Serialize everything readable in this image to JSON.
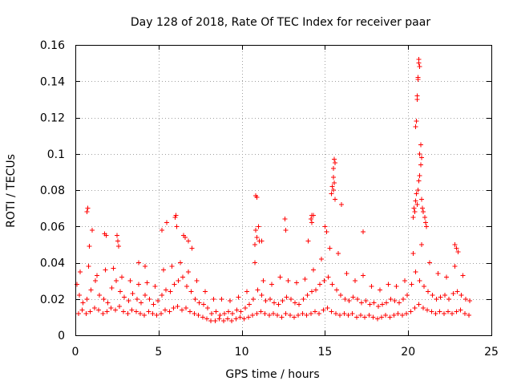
{
  "chart_data": {
    "type": "scatter",
    "title": "Day 128 of 2018, Rate Of TEC Index for receiver paar",
    "xlabel": "GPS time / hours",
    "ylabel": "ROTI / TECUs",
    "xlim": [
      0,
      25
    ],
    "ylim": [
      0,
      0.16
    ],
    "x_ticks": [
      0,
      5,
      10,
      15,
      20,
      25
    ],
    "y_ticks": [
      0,
      0.02,
      0.04,
      0.06,
      0.08,
      0.1,
      0.12,
      0.14,
      0.16
    ],
    "x_tick_labels": [
      "0",
      "5",
      "10",
      "15",
      "20",
      "25"
    ],
    "y_tick_labels": [
      "0",
      "0.02",
      "0.04",
      "0.06",
      "0.08",
      "0.1",
      "0.12",
      "0.14",
      "0.16"
    ],
    "grid": true,
    "marker": "plus",
    "series_color": "#ff0000",
    "series": [
      {
        "name": "ROTI",
        "x": [
          0.1,
          0.25,
          0.45,
          0.7,
          0.95,
          1.2,
          1.45,
          1.7,
          1.95,
          2.2,
          2.45,
          2.7,
          2.95,
          3.2,
          3.45,
          3.7,
          3.95,
          4.2,
          4.45,
          4.7,
          4.95,
          5.2,
          5.45,
          5.7,
          5.95,
          6.2,
          6.45,
          6.7,
          6.95,
          7.2,
          7.45,
          7.7,
          7.95,
          8.2,
          8.45,
          8.7,
          8.95,
          9.2,
          9.45,
          9.7,
          9.95,
          10.2,
          10.45,
          10.7,
          10.95,
          11.2,
          11.45,
          11.7,
          11.95,
          12.2,
          12.45,
          12.7,
          12.95,
          13.2,
          13.45,
          13.7,
          13.95,
          14.2,
          14.45,
          14.7,
          14.95,
          15.2,
          15.45,
          15.7,
          15.95,
          16.2,
          16.45,
          16.7,
          16.95,
          17.2,
          17.45,
          17.7,
          17.95,
          18.2,
          18.45,
          18.7,
          18.95,
          19.2,
          19.45,
          19.7,
          19.95,
          20.2,
          20.45,
          20.7,
          20.95,
          21.2,
          21.45,
          21.7,
          21.95,
          22.2,
          22.45,
          22.7,
          22.95,
          23.2,
          23.45,
          23.7,
          0.2,
          0.4,
          0.65,
          0.9,
          1.15,
          1.4,
          1.65,
          1.9,
          2.15,
          2.4,
          2.65,
          2.9,
          3.15,
          3.4,
          3.65,
          3.9,
          4.15,
          4.4,
          4.65,
          4.9,
          5.15,
          5.4,
          5.65,
          5.9,
          6.15,
          6.4,
          6.65,
          6.9,
          7.15,
          7.4,
          7.65,
          7.9,
          8.15,
          8.4,
          8.65,
          8.9,
          9.15,
          9.4,
          9.65,
          9.9,
          10.15,
          10.4,
          10.65,
          10.9,
          11.15,
          11.4,
          11.65,
          11.9,
          12.15,
          12.4,
          12.65,
          12.9,
          13.15,
          13.4,
          13.65,
          13.9,
          14.15,
          14.4,
          14.65,
          14.9,
          15.15,
          15.4,
          15.65,
          15.9,
          16.15,
          16.4,
          16.65,
          16.9,
          17.15,
          17.4,
          17.65,
          17.9,
          18.15,
          18.4,
          18.65,
          18.9,
          19.15,
          19.4,
          19.65,
          19.9,
          20.15,
          20.4,
          20.65,
          20.9,
          21.15,
          21.4,
          21.65,
          21.9,
          22.15,
          22.4,
          22.65,
          22.9,
          23.15,
          23.4,
          23.65,
          0.3,
          0.8,
          1.3,
          1.8,
          2.3,
          2.8,
          3.3,
          3.8,
          4.3,
          4.8,
          5.3,
          5.8,
          6.3,
          6.8,
          7.3,
          7.8,
          8.3,
          8.8,
          9.3,
          9.8,
          10.3,
          10.8,
          11.3,
          11.8,
          12.3,
          12.8,
          13.3,
          13.8,
          14.3,
          14.8,
          15.3,
          15.8,
          16.3,
          16.8,
          17.3,
          17.8,
          18.3,
          18.8,
          19.3,
          19.8,
          20.3,
          20.8,
          21.3,
          21.8,
          22.3,
          22.8,
          23.3,
          0.7,
          0.75,
          0.85,
          1.0,
          1.75,
          1.85,
          2.5,
          2.55,
          2.6,
          3.8,
          4.2,
          5.2,
          5.5,
          6.0,
          6.05,
          6.1,
          6.5,
          6.6,
          6.8,
          7.0,
          10.8,
          10.85,
          10.9,
          11.0,
          11.05,
          11.2,
          12.6,
          12.65,
          14.0,
          14.2,
          14.3,
          15.0,
          15.1,
          15.4,
          15.45,
          15.5,
          15.55,
          15.6,
          16.0,
          17.3,
          20.3,
          20.35,
          20.4,
          20.45,
          20.5,
          20.55,
          20.6,
          20.65,
          20.7,
          20.75,
          20.8,
          20.85,
          20.9,
          21.0,
          21.05,
          21.1,
          22.8,
          22.9,
          23.0,
          20.45,
          20.5,
          20.55,
          20.6,
          20.65,
          20.7,
          20.75,
          20.8,
          20.55,
          20.6,
          20.65,
          20.7,
          15.5,
          15.55,
          15.6,
          15.5,
          10.85,
          10.9,
          14.15,
          14.2
        ],
        "y": [
          0.028,
          0.022,
          0.018,
          0.02,
          0.025,
          0.03,
          0.022,
          0.02,
          0.018,
          0.026,
          0.03,
          0.024,
          0.021,
          0.019,
          0.023,
          0.02,
          0.018,
          0.022,
          0.02,
          0.017,
          0.019,
          0.022,
          0.025,
          0.024,
          0.028,
          0.03,
          0.032,
          0.027,
          0.024,
          0.02,
          0.018,
          0.017,
          0.015,
          0.012,
          0.013,
          0.011,
          0.012,
          0.013,
          0.012,
          0.014,
          0.013,
          0.015,
          0.017,
          0.02,
          0.025,
          0.022,
          0.019,
          0.02,
          0.018,
          0.017,
          0.019,
          0.021,
          0.02,
          0.018,
          0.017,
          0.02,
          0.022,
          0.024,
          0.025,
          0.028,
          0.03,
          0.032,
          0.028,
          0.025,
          0.022,
          0.02,
          0.019,
          0.021,
          0.02,
          0.018,
          0.019,
          0.017,
          0.018,
          0.016,
          0.017,
          0.018,
          0.02,
          0.019,
          0.018,
          0.02,
          0.022,
          0.028,
          0.035,
          0.03,
          0.027,
          0.024,
          0.022,
          0.02,
          0.021,
          0.022,
          0.02,
          0.023,
          0.024,
          0.022,
          0.02,
          0.019,
          0.012,
          0.014,
          0.012,
          0.013,
          0.015,
          0.014,
          0.012,
          0.013,
          0.015,
          0.014,
          0.016,
          0.013,
          0.012,
          0.014,
          0.013,
          0.012,
          0.011,
          0.013,
          0.012,
          0.011,
          0.012,
          0.014,
          0.013,
          0.015,
          0.016,
          0.014,
          0.015,
          0.013,
          0.012,
          0.011,
          0.01,
          0.009,
          0.008,
          0.008,
          0.009,
          0.008,
          0.009,
          0.008,
          0.009,
          0.01,
          0.009,
          0.01,
          0.011,
          0.012,
          0.013,
          0.012,
          0.011,
          0.012,
          0.011,
          0.01,
          0.012,
          0.011,
          0.01,
          0.011,
          0.012,
          0.011,
          0.012,
          0.013,
          0.012,
          0.014,
          0.015,
          0.013,
          0.012,
          0.011,
          0.012,
          0.011,
          0.012,
          0.01,
          0.011,
          0.01,
          0.011,
          0.01,
          0.009,
          0.01,
          0.011,
          0.01,
          0.011,
          0.012,
          0.011,
          0.012,
          0.013,
          0.015,
          0.017,
          0.015,
          0.014,
          0.013,
          0.012,
          0.013,
          0.012,
          0.013,
          0.012,
          0.013,
          0.014,
          0.012,
          0.011,
          0.035,
          0.038,
          0.033,
          0.036,
          0.037,
          0.032,
          0.03,
          0.028,
          0.029,
          0.027,
          0.036,
          0.038,
          0.04,
          0.035,
          0.03,
          0.024,
          0.02,
          0.02,
          0.019,
          0.021,
          0.024,
          0.04,
          0.03,
          0.028,
          0.032,
          0.03,
          0.029,
          0.031,
          0.036,
          0.042,
          0.048,
          0.045,
          0.034,
          0.03,
          0.033,
          0.027,
          0.025,
          0.028,
          0.027,
          0.03,
          0.045,
          0.05,
          0.04,
          0.034,
          0.032,
          0.038,
          0.033,
          0.068,
          0.07,
          0.049,
          0.058,
          0.056,
          0.055,
          0.055,
          0.052,
          0.049,
          0.04,
          0.038,
          0.058,
          0.062,
          0.065,
          0.066,
          0.06,
          0.055,
          0.054,
          0.052,
          0.048,
          0.05,
          0.058,
          0.054,
          0.06,
          0.052,
          0.052,
          0.064,
          0.058,
          0.052,
          0.062,
          0.066,
          0.06,
          0.057,
          0.078,
          0.082,
          0.08,
          0.084,
          0.075,
          0.072,
          0.057,
          0.065,
          0.07,
          0.068,
          0.074,
          0.078,
          0.072,
          0.08,
          0.085,
          0.088,
          0.094,
          0.075,
          0.07,
          0.068,
          0.065,
          0.062,
          0.06,
          0.05,
          0.048,
          0.046,
          0.115,
          0.118,
          0.132,
          0.141,
          0.152,
          0.148,
          0.105,
          0.098,
          0.13,
          0.142,
          0.15,
          0.1,
          0.092,
          0.097,
          0.095,
          0.087,
          0.077,
          0.076,
          0.064,
          0.066
        ]
      }
    ]
  }
}
